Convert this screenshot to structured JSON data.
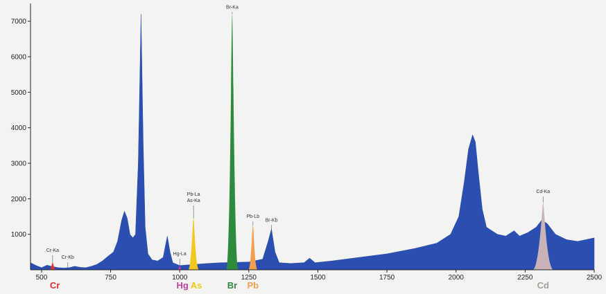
{
  "chart_data": {
    "type": "area",
    "xlim": [
      460,
      2500
    ],
    "ylim": [
      0,
      7500
    ],
    "x_ticks": [
      500,
      750,
      1000,
      1250,
      1500,
      1750,
      2000,
      2250,
      2500
    ],
    "y_ticks": [
      1000,
      2000,
      3000,
      4000,
      5000,
      6000,
      7000
    ],
    "grid": false,
    "colors": {
      "spectrum": "#2a4fb0",
      "background": "#f3f3f1",
      "axis": "#222222"
    },
    "series": [
      {
        "points": [
          [
            460,
            200
          ],
          [
            480,
            120
          ],
          [
            500,
            60
          ],
          [
            520,
            130
          ],
          [
            535,
            100
          ],
          [
            560,
            60
          ],
          [
            580,
            50
          ],
          [
            600,
            60
          ],
          [
            620,
            100
          ],
          [
            640,
            70
          ],
          [
            660,
            60
          ],
          [
            680,
            100
          ],
          [
            700,
            150
          ],
          [
            720,
            250
          ],
          [
            740,
            380
          ],
          [
            760,
            500
          ],
          [
            775,
            800
          ],
          [
            790,
            1400
          ],
          [
            800,
            1650
          ],
          [
            810,
            1450
          ],
          [
            820,
            1000
          ],
          [
            830,
            900
          ],
          [
            840,
            1000
          ],
          [
            850,
            3000
          ],
          [
            860,
            7200
          ],
          [
            868,
            3500
          ],
          [
            875,
            1200
          ],
          [
            885,
            450
          ],
          [
            900,
            280
          ],
          [
            920,
            250
          ],
          [
            940,
            350
          ],
          [
            955,
            950
          ],
          [
            965,
            500
          ],
          [
            975,
            200
          ],
          [
            1000,
            120
          ],
          [
            1050,
            150
          ],
          [
            1100,
            180
          ],
          [
            1150,
            200
          ],
          [
            1250,
            220
          ],
          [
            1300,
            300
          ],
          [
            1320,
            800
          ],
          [
            1332,
            1150
          ],
          [
            1345,
            500
          ],
          [
            1360,
            200
          ],
          [
            1400,
            180
          ],
          [
            1450,
            200
          ],
          [
            1470,
            330
          ],
          [
            1490,
            200
          ],
          [
            1550,
            250
          ],
          [
            1650,
            350
          ],
          [
            1750,
            450
          ],
          [
            1850,
            600
          ],
          [
            1930,
            750
          ],
          [
            1980,
            1000
          ],
          [
            2010,
            1500
          ],
          [
            2030,
            2500
          ],
          [
            2045,
            3400
          ],
          [
            2060,
            3800
          ],
          [
            2070,
            3600
          ],
          [
            2080,
            2800
          ],
          [
            2095,
            1700
          ],
          [
            2110,
            1200
          ],
          [
            2150,
            1000
          ],
          [
            2180,
            950
          ],
          [
            2210,
            1100
          ],
          [
            2230,
            950
          ],
          [
            2260,
            1050
          ],
          [
            2290,
            1200
          ],
          [
            2310,
            1400
          ],
          [
            2330,
            1300
          ],
          [
            2360,
            1000
          ],
          [
            2400,
            850
          ],
          [
            2440,
            800
          ],
          [
            2470,
            850
          ],
          [
            2500,
            900
          ]
        ]
      }
    ],
    "element_peaks": [
      {
        "element": "Cr",
        "label": "Cr-Ka",
        "color": "#e03030",
        "center": 540,
        "height": 200,
        "width": 12,
        "label_y": 450
      },
      {
        "element": "",
        "label": "Cr-Kb",
        "color": "#2a4fb0",
        "center": 595,
        "height": 60,
        "width": 8,
        "label_y": 250
      },
      {
        "element": "Hg",
        "label": "Hg-La",
        "color": "#c040a0",
        "center": 1000,
        "height": 110,
        "width": 8,
        "label_y": 350
      },
      {
        "element": "As",
        "label": "Pb-La",
        "label2": "As-Ka",
        "color": "#f2c820",
        "center": 1050,
        "height": 1450,
        "width": 20,
        "label_y": 1850
      },
      {
        "element": "Br",
        "label": "Br-Ka",
        "color": "#2e8b3e",
        "center": 1190,
        "height": 7200,
        "width": 22,
        "label_y": 7300
      },
      {
        "element": "Pb",
        "label": "Pb-Lb",
        "color": "#f0a050",
        "center": 1265,
        "height": 1250,
        "width": 17,
        "label_y": 1400
      },
      {
        "element": "",
        "label": "Br-Kb",
        "color": "#2a4fb0",
        "center": 1332,
        "height": 1150,
        "width": 12,
        "label_y": 1300
      },
      {
        "element": "Cd",
        "label": "Cd-Ka",
        "color": "#c8b4b8",
        "center": 2315,
        "height": 1900,
        "width": 38,
        "label_y": 2100
      }
    ],
    "element_labels": [
      {
        "text": "Cr",
        "color": "#e03030",
        "x": 548
      },
      {
        "text": "Hg",
        "color": "#c040a0",
        "x": 1010
      },
      {
        "text": "As",
        "color": "#f2c820",
        "x": 1060
      },
      {
        "text": "Br",
        "color": "#2e8b3e",
        "x": 1190
      },
      {
        "text": "Pb",
        "color": "#f0a050",
        "x": 1265
      },
      {
        "text": "Cd",
        "color": "#a89c9c",
        "x": 2315
      }
    ]
  }
}
